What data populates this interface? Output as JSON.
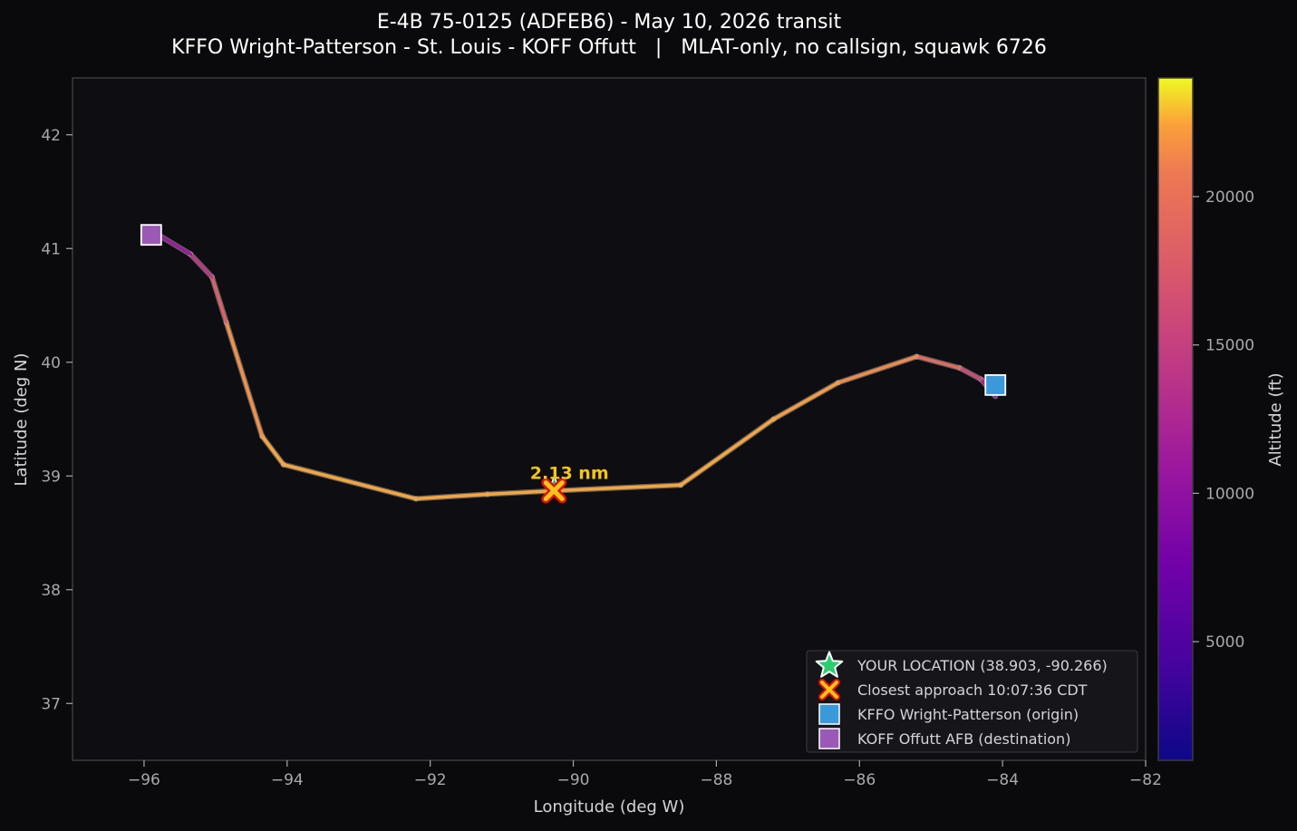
{
  "colors": {
    "background": "#0a0a0c",
    "plot_bg": "#0e0e12",
    "axis_frame": "#3a3a40",
    "tick_text": "#a8a8ae",
    "label_text": "#d4d4d8",
    "title_text": "#ffffff",
    "annotation": "#f5c518",
    "origin_marker": "#3a9ad9",
    "destination_marker": "#9b59b6",
    "your_location_star": "#2ecc71",
    "closest_fill": "#f5c518",
    "closest_edge": "#e01010"
  },
  "chart_data": {
    "type": "line",
    "title": "E-4B 75-0125 (ADFEB6) - May 10, 2026 transit",
    "subtitle": "KFFO Wright-Patterson - St. Louis - KOFF Offutt   |   MLAT-only, no callsign, squawk 6726",
    "xlabel": "Longitude (deg W)",
    "ylabel": "Latitude (deg N)",
    "xlim": [
      -97,
      -82
    ],
    "ylim": [
      36.5,
      42.5
    ],
    "xticks": [
      -96,
      -94,
      -92,
      -90,
      -88,
      -86,
      -84,
      -82
    ],
    "yticks": [
      37,
      38,
      39,
      40,
      41,
      42
    ],
    "xtick_labels": [
      "−96",
      "−94",
      "−92",
      "−90",
      "−88",
      "−86",
      "−84",
      "−82"
    ],
    "ytick_labels": [
      "37",
      "38",
      "39",
      "40",
      "41",
      "42"
    ],
    "grid": false,
    "colormap": "plasma",
    "colorbar": {
      "label": "Altitude (ft)",
      "range": [
        1000,
        24000
      ],
      "ticks": [
        5000,
        10000,
        15000,
        20000
      ],
      "tick_labels": [
        "5000",
        "10000",
        "15000",
        "20000"
      ]
    },
    "track": {
      "lon": [
        -84.1,
        -84.3,
        -84.6,
        -85.2,
        -86.3,
        -87.2,
        -88.5,
        -90.27,
        -91.2,
        -92.2,
        -94.05,
        -94.35,
        -94.85,
        -95.05,
        -95.35,
        -95.8
      ],
      "lat": [
        39.7,
        39.85,
        39.95,
        40.05,
        39.82,
        39.5,
        38.92,
        38.87,
        38.84,
        38.8,
        39.1,
        39.35,
        40.35,
        40.75,
        40.95,
        41.12
      ],
      "altitude_ft": [
        9000,
        14500,
        17500,
        21000,
        22000,
        22500,
        22500,
        22500,
        22500,
        22500,
        22500,
        22500,
        21000,
        15500,
        12500,
        9500
      ]
    },
    "origin": {
      "lon": -84.1,
      "lat": 39.8,
      "label": "KFFO Wright-Patterson (origin)"
    },
    "destination": {
      "lon": -95.9,
      "lat": 41.12,
      "label": "KOFF Offutt AFB (destination)"
    },
    "your_location": {
      "lat": 38.903,
      "lon": -90.266,
      "label": "YOUR LOCATION (38.903, -90.266)"
    },
    "closest_approach": {
      "lon": -90.27,
      "lat": 38.87,
      "label": "Closest approach 10:07:36 CDT",
      "annotation": "2.13 nm"
    },
    "legend_position": "lower-right"
  }
}
